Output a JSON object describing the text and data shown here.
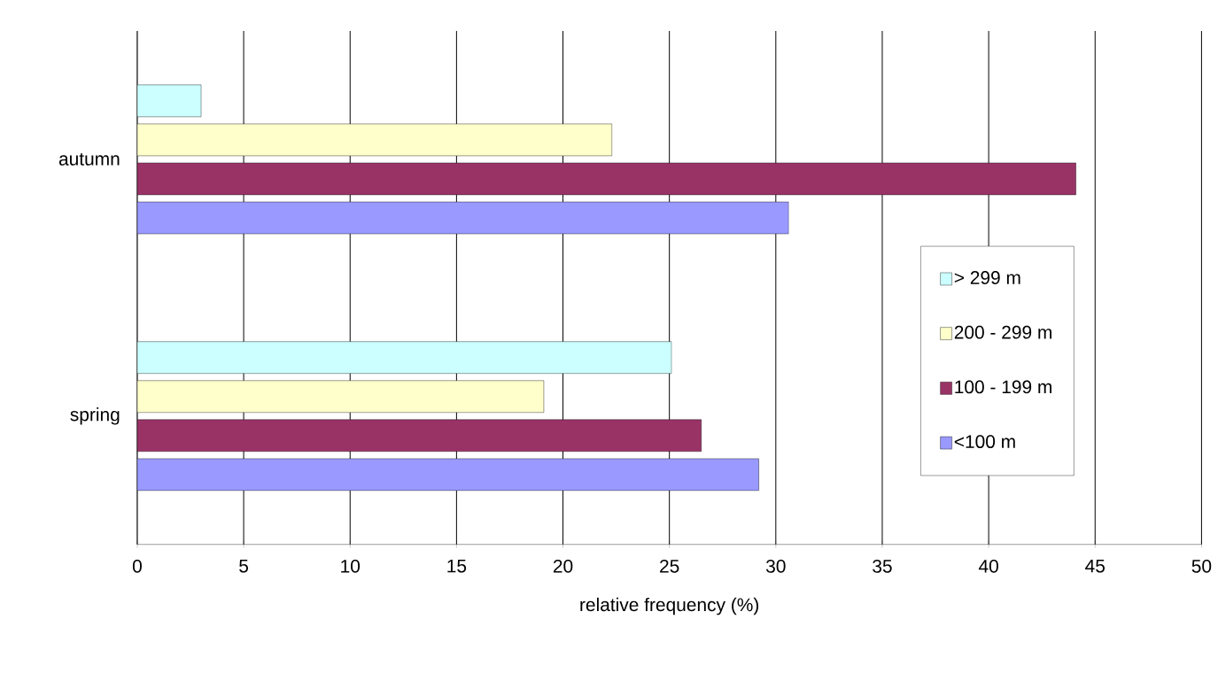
{
  "chart_data": {
    "type": "bar",
    "orientation": "horizontal",
    "categories": [
      "autumn",
      "spring"
    ],
    "series": [
      {
        "name": "<100 m",
        "color": "#9999ff",
        "values": [
          30.6,
          29.2
        ]
      },
      {
        "name": "100 - 199 m",
        "color": "#993366",
        "values": [
          44.1,
          26.5
        ]
      },
      {
        "name": "200 - 299 m",
        "color": "#ffffcc",
        "values": [
          22.3,
          19.1
        ]
      },
      {
        "name": "> 299 m",
        "color": "#ccffff",
        "values": [
          3.0,
          25.1
        ]
      }
    ],
    "xlim": [
      0,
      50
    ],
    "xticks": [
      0,
      5,
      10,
      15,
      20,
      25,
      30,
      35,
      40,
      45,
      50
    ],
    "xlabel": "relative frequency (%)",
    "grid": "x",
    "legend": "right"
  }
}
